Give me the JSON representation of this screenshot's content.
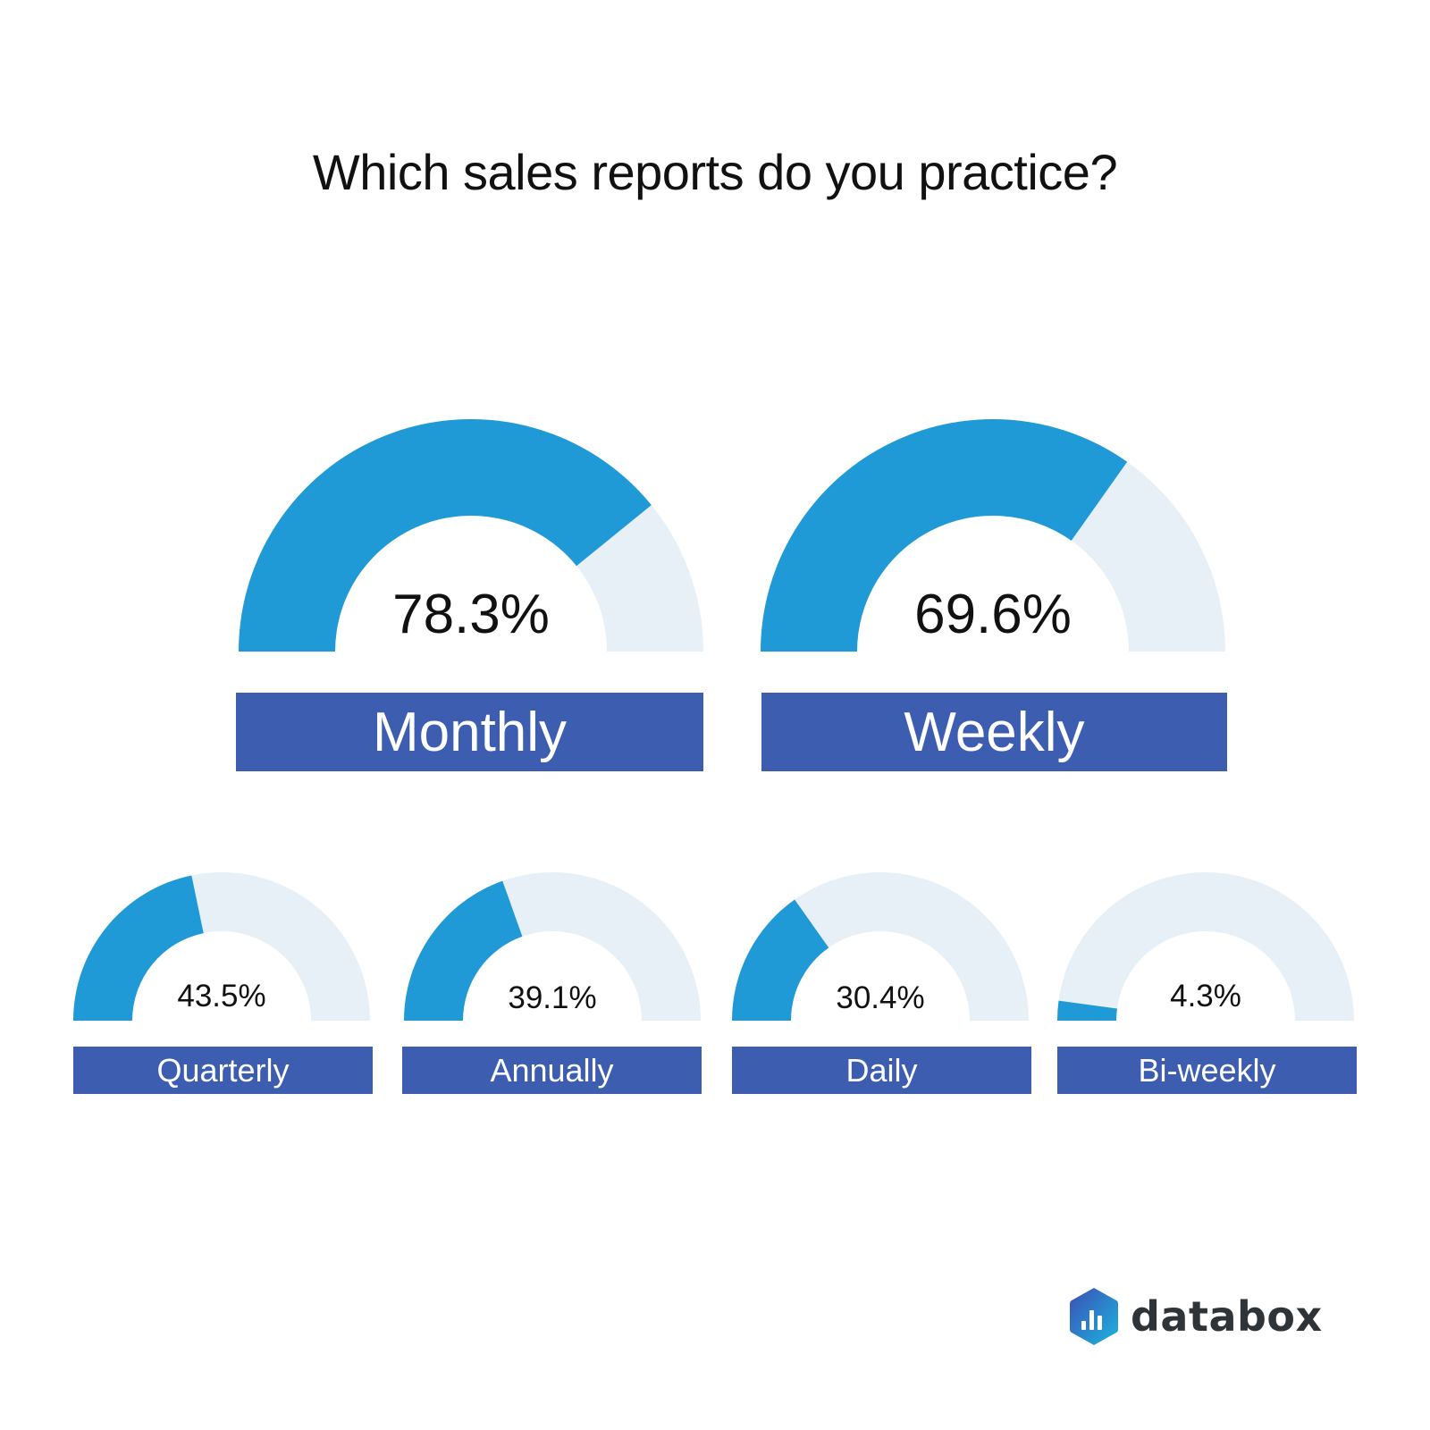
{
  "title": "Which sales reports do you practice?",
  "colors": {
    "fill": "#209ad6",
    "track": "#e7f0f7",
    "label_bg": "#3c5db0",
    "label_text": "#ffffff"
  },
  "logo": {
    "icon": "databox-hexagon-bar-chart-icon",
    "text": "databox"
  },
  "chart_data": {
    "type": "gauge",
    "title": "Which sales reports do you practice?",
    "categories": [
      "Monthly",
      "Weekly",
      "Quarterly",
      "Annually",
      "Daily",
      "Bi-weekly"
    ],
    "values": [
      78.3,
      69.6,
      43.5,
      39.1,
      30.4,
      4.3
    ],
    "unit": "%",
    "range": [
      0,
      100
    ],
    "gauges": [
      {
        "label": "Monthly",
        "value": 78.3,
        "display": "78.3%",
        "size": "big"
      },
      {
        "label": "Weekly",
        "value": 69.6,
        "display": "69.6%",
        "size": "big"
      },
      {
        "label": "Quarterly",
        "value": 43.5,
        "display": "43.5%",
        "size": "small"
      },
      {
        "label": "Annually",
        "value": 39.1,
        "display": "39.1%",
        "size": "small"
      },
      {
        "label": "Daily",
        "value": 30.4,
        "display": "30.4%",
        "size": "small"
      },
      {
        "label": "Bi-weekly",
        "value": 4.3,
        "display": "4.3%",
        "size": "small"
      }
    ]
  }
}
